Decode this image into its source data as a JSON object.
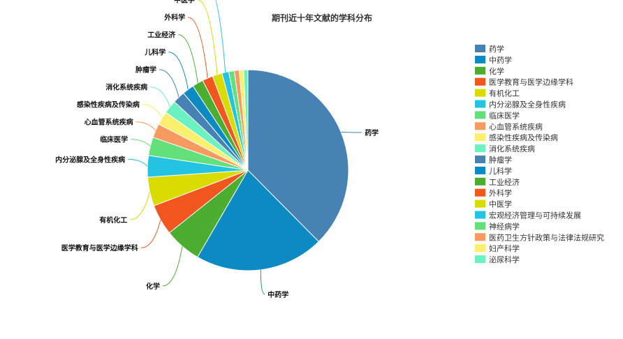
{
  "chart_data": {
    "type": "pie",
    "title": "期刊近十年文献的学科分布",
    "categories": [
      "药学",
      "中药学",
      "化学",
      "医学教育与医学边缘学科",
      "有机化工",
      "内分泌腺及全身性疾病",
      "临床医学",
      "心血管系统疾病",
      "感染性疾病及传染病",
      "消化系统疾病",
      "肿瘤学",
      "儿科学",
      "工业经济",
      "外科学",
      "中医学",
      "宏观经济管理与可持续发展",
      "神经病学",
      "医药卫生方针政策与法律法规研究",
      "妇产科学",
      "泌尿科学"
    ],
    "values": [
      38.0,
      21.0,
      6.0,
      5.0,
      4.7,
      3.5,
      3.0,
      2.3,
      2.2,
      2.2,
      2.0,
      1.9,
      1.8,
      1.7,
      1.6,
      1.1,
      0.9,
      0.8,
      0.7,
      0.7
    ],
    "colors": [
      "#4682b4",
      "#0b8ac4",
      "#4cae31",
      "#f0561e",
      "#d8dc00",
      "#24c3e1",
      "#63e07a",
      "#f79a60",
      "#fbf06c",
      "#6cf2c1",
      "#4682b4",
      "#0b8ac4",
      "#4cae31",
      "#f0561e",
      "#d8dc00",
      "#24c3e1",
      "#63e07a",
      "#f79a60",
      "#fbf06c",
      "#6cf2c1"
    ],
    "labeled": [
      "药学",
      "中药学",
      "化学",
      "医学教育与医学边缘学科",
      "有机化工",
      "内分泌腺及全身性疾病",
      "临床医学",
      "心血管系统疾病",
      "感染性疾病及传染病",
      "消化系统疾病",
      "肿瘤学",
      "儿科学",
      "工业经济",
      "外科学",
      "中医学",
      "宏观经济管理与可持续发展"
    ],
    "legend_position": "right"
  }
}
